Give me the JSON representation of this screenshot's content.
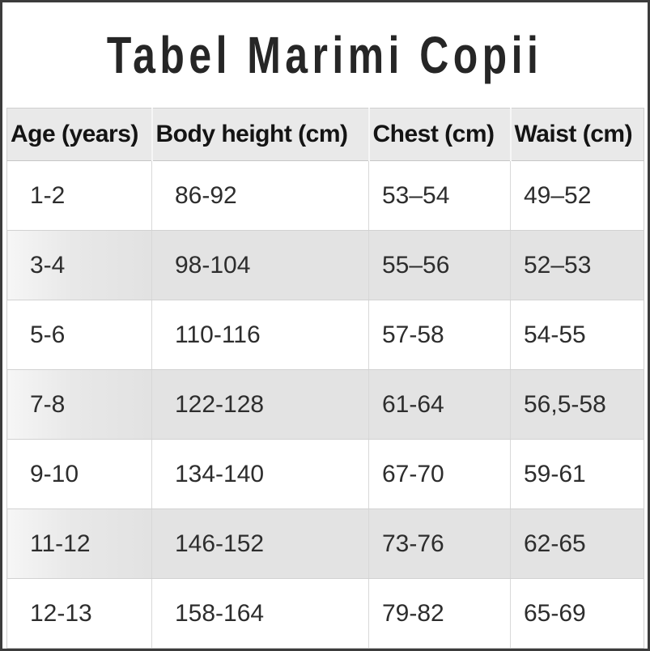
{
  "page": {
    "title": "Tabel Marimi Copii"
  },
  "chart_data": {
    "type": "table",
    "title": "Tabel Marimi Copii",
    "columns": [
      "Age (years)",
      "Body height (cm)",
      "Chest (cm)",
      "Waist (cm)"
    ],
    "rows": [
      [
        "1-2",
        "86-92",
        "53–54",
        "49–52"
      ],
      [
        "3-4",
        "98-104",
        "55–56",
        "52–53"
      ],
      [
        "5-6",
        "110-116",
        "57-58",
        "54-55"
      ],
      [
        "7-8",
        "122-128",
        "61-64",
        "56,5-58"
      ],
      [
        "9-10",
        "134-140",
        "67-70",
        "59-61"
      ],
      [
        "11-12",
        "146-152",
        "73-76",
        "62-65"
      ],
      [
        "12-13",
        "158-164",
        "79-82",
        "65-69"
      ]
    ],
    "layout": {
      "striped": true,
      "stripe_color": "#e3e3e3",
      "header_bg": "#e9e9e9",
      "border_color": "#d2d2d2",
      "frame_color": "#3c3c3c",
      "text_color": "#2d2d2d"
    }
  }
}
